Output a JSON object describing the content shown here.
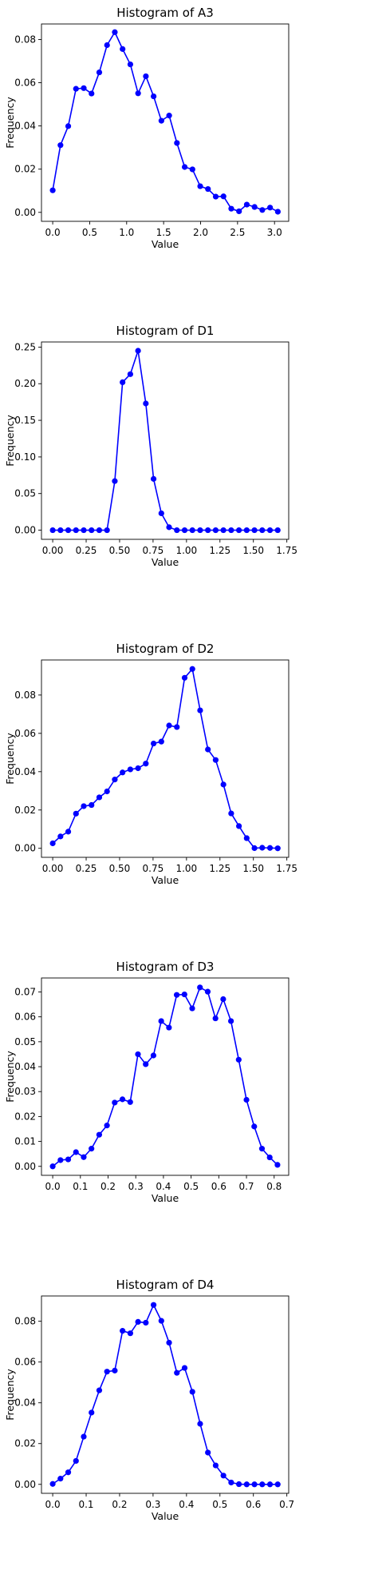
{
  "chart_data": [
    {
      "type": "line",
      "title": "Histogram of A3",
      "xlabel": "Value",
      "ylabel": "Frequency",
      "xlim": [
        -0.152,
        3.192
      ],
      "ylim": [
        -0.00415,
        0.0872
      ],
      "xticks": [
        0.0,
        0.5,
        1.0,
        1.5,
        2.0,
        2.5,
        3.0
      ],
      "xtick_labels": [
        "0.0",
        "0.5",
        "1.0",
        "1.5",
        "2.0",
        "2.5",
        "3.0"
      ],
      "yticks": [
        0.0,
        0.02,
        0.04,
        0.06,
        0.08
      ],
      "ytick_labels": [
        "0.00",
        "0.02",
        "0.04",
        "0.06",
        "0.08"
      ],
      "color": "#0000ff",
      "marker": "circle",
      "grid": false,
      "x": [
        0.0,
        0.105,
        0.21,
        0.315,
        0.42,
        0.525,
        0.63,
        0.735,
        0.84,
        0.945,
        1.05,
        1.155,
        1.26,
        1.365,
        1.47,
        1.575,
        1.68,
        1.785,
        1.89,
        1.995,
        2.1,
        2.205,
        2.31,
        2.415,
        2.52,
        2.625,
        2.73,
        2.835,
        2.94,
        3.045
      ],
      "y": [
        0.0102,
        0.0311,
        0.0399,
        0.0572,
        0.0575,
        0.055,
        0.0648,
        0.0774,
        0.0834,
        0.0756,
        0.0685,
        0.0551,
        0.063,
        0.0537,
        0.0424,
        0.0448,
        0.0321,
        0.021,
        0.0199,
        0.0121,
        0.0108,
        0.0073,
        0.0074,
        0.0017,
        0.0005,
        0.0036,
        0.0025,
        0.0011,
        0.0022,
        0.0003
      ]
    },
    {
      "type": "line",
      "title": "Histogram of D1",
      "xlabel": "Value",
      "ylabel": "Frequency",
      "xlim": [
        -0.084,
        1.764
      ],
      "ylim": [
        -0.0125,
        0.257
      ],
      "xticks": [
        0.0,
        0.25,
        0.5,
        0.75,
        1.0,
        1.25,
        1.5,
        1.75
      ],
      "xtick_labels": [
        "0.00",
        "0.25",
        "0.50",
        "0.75",
        "1.00",
        "1.25",
        "1.50",
        "1.75"
      ],
      "yticks": [
        0.0,
        0.05,
        0.1,
        0.15,
        0.2,
        0.25
      ],
      "ytick_labels": [
        "0.00",
        "0.05",
        "0.10",
        "0.15",
        "0.20",
        "0.25"
      ],
      "color": "#0000ff",
      "marker": "circle",
      "grid": false,
      "x": [
        0.0,
        0.058,
        0.116,
        0.174,
        0.232,
        0.29,
        0.348,
        0.406,
        0.464,
        0.522,
        0.58,
        0.638,
        0.696,
        0.754,
        0.812,
        0.87,
        0.928,
        0.986,
        1.044,
        1.102,
        1.16,
        1.218,
        1.276,
        1.334,
        1.392,
        1.45,
        1.508,
        1.566,
        1.624,
        1.682
      ],
      "y": [
        0,
        0,
        0,
        0,
        0,
        0,
        0,
        0,
        0.067,
        0.202,
        0.213,
        0.245,
        0.173,
        0.07,
        0.023,
        0.004,
        0,
        0,
        0,
        0,
        0,
        0,
        0,
        0,
        0,
        0,
        0,
        0,
        0,
        0
      ]
    },
    {
      "type": "line",
      "title": "Histogram of D2",
      "xlabel": "Value",
      "ylabel": "Frequency",
      "xlim": [
        -0.084,
        1.764
      ],
      "ylim": [
        -0.0047,
        0.0983
      ],
      "xticks": [
        0.0,
        0.25,
        0.5,
        0.75,
        1.0,
        1.25,
        1.5,
        1.75
      ],
      "xtick_labels": [
        "0.00",
        "0.25",
        "0.50",
        "0.75",
        "1.00",
        "1.25",
        "1.50",
        "1.75"
      ],
      "yticks": [
        0.0,
        0.02,
        0.04,
        0.06,
        0.08
      ],
      "ytick_labels": [
        "0.00",
        "0.02",
        "0.04",
        "0.06",
        "0.08"
      ],
      "color": "#0000ff",
      "marker": "circle",
      "grid": false,
      "x": [
        0.0,
        0.058,
        0.116,
        0.174,
        0.232,
        0.29,
        0.348,
        0.406,
        0.464,
        0.522,
        0.58,
        0.638,
        0.696,
        0.754,
        0.812,
        0.87,
        0.928,
        0.986,
        1.044,
        1.102,
        1.16,
        1.218,
        1.276,
        1.334,
        1.392,
        1.45,
        1.508,
        1.566,
        1.624,
        1.682
      ],
      "y": [
        0.0026,
        0.0062,
        0.0087,
        0.0181,
        0.022,
        0.0226,
        0.0266,
        0.0297,
        0.0359,
        0.0396,
        0.0412,
        0.0418,
        0.0442,
        0.0547,
        0.0557,
        0.0641,
        0.0633,
        0.089,
        0.0936,
        0.072,
        0.0516,
        0.0461,
        0.0333,
        0.0182,
        0.0116,
        0.0053,
        0.0001,
        0.0003,
        0.0002,
        0.0
      ]
    },
    {
      "type": "line",
      "title": "Histogram of D3",
      "xlabel": "Value",
      "ylabel": "Frequency",
      "xlim": [
        -0.0406,
        0.8526
      ],
      "ylim": [
        -0.0036,
        0.0756
      ],
      "xticks": [
        0.0,
        0.1,
        0.2,
        0.3,
        0.4,
        0.5,
        0.6,
        0.7,
        0.8
      ],
      "xtick_labels": [
        "0.0",
        "0.1",
        "0.2",
        "0.3",
        "0.4",
        "0.5",
        "0.6",
        "0.7",
        "0.8"
      ],
      "yticks": [
        0.0,
        0.01,
        0.02,
        0.03,
        0.04,
        0.05,
        0.06,
        0.07
      ],
      "ytick_labels": [
        "0.00",
        "0.01",
        "0.02",
        "0.03",
        "0.04",
        "0.05",
        "0.06",
        "0.07"
      ],
      "color": "#0000ff",
      "marker": "circle",
      "grid": false,
      "x": [
        0.0,
        0.028,
        0.056,
        0.084,
        0.112,
        0.14,
        0.168,
        0.196,
        0.224,
        0.252,
        0.28,
        0.308,
        0.336,
        0.364,
        0.392,
        0.42,
        0.448,
        0.476,
        0.504,
        0.532,
        0.56,
        0.588,
        0.616,
        0.644,
        0.672,
        0.7,
        0.728,
        0.756,
        0.784,
        0.812
      ],
      "y": [
        0.0,
        0.0025,
        0.0028,
        0.0057,
        0.0037,
        0.0071,
        0.0127,
        0.0164,
        0.0256,
        0.0269,
        0.0258,
        0.045,
        0.041,
        0.0445,
        0.0583,
        0.0557,
        0.0688,
        0.069,
        0.0634,
        0.0718,
        0.0701,
        0.0594,
        0.0671,
        0.0583,
        0.0428,
        0.0267,
        0.016,
        0.0071,
        0.0036,
        0.0006
      ]
    },
    {
      "type": "line",
      "title": "Histogram of D4",
      "xlabel": "Value",
      "ylabel": "Frequency",
      "xlim": [
        -0.0336,
        0.7056
      ],
      "ylim": [
        -0.0044,
        0.0924
      ],
      "xticks": [
        0.0,
        0.1,
        0.2,
        0.3,
        0.4,
        0.5,
        0.6,
        0.7
      ],
      "xtick_labels": [
        "0.0",
        "0.1",
        "0.2",
        "0.3",
        "0.4",
        "0.5",
        "0.6",
        "0.7"
      ],
      "yticks": [
        0.0,
        0.02,
        0.04,
        0.06,
        0.08
      ],
      "ytick_labels": [
        "0.00",
        "0.02",
        "0.04",
        "0.06",
        "0.08"
      ],
      "color": "#0000ff",
      "marker": "circle",
      "grid": false,
      "x": [
        0.0,
        0.0232,
        0.0464,
        0.0696,
        0.0928,
        0.116,
        0.1392,
        0.1624,
        0.1856,
        0.2088,
        0.232,
        0.2552,
        0.2784,
        0.3016,
        0.3248,
        0.348,
        0.3712,
        0.3944,
        0.4176,
        0.4408,
        0.464,
        0.4872,
        0.5104,
        0.5336,
        0.5568,
        0.58,
        0.6032,
        0.6264,
        0.6496,
        0.6728
      ],
      "y": [
        0.0002,
        0.0028,
        0.0059,
        0.0115,
        0.0234,
        0.0352,
        0.0461,
        0.0553,
        0.0558,
        0.0753,
        0.0741,
        0.0797,
        0.0793,
        0.088,
        0.0802,
        0.0695,
        0.0547,
        0.0571,
        0.0454,
        0.0297,
        0.0156,
        0.0093,
        0.0043,
        0.0009,
        0.0001,
        0.0,
        0.0,
        0.0,
        0.0,
        0.0
      ]
    }
  ]
}
